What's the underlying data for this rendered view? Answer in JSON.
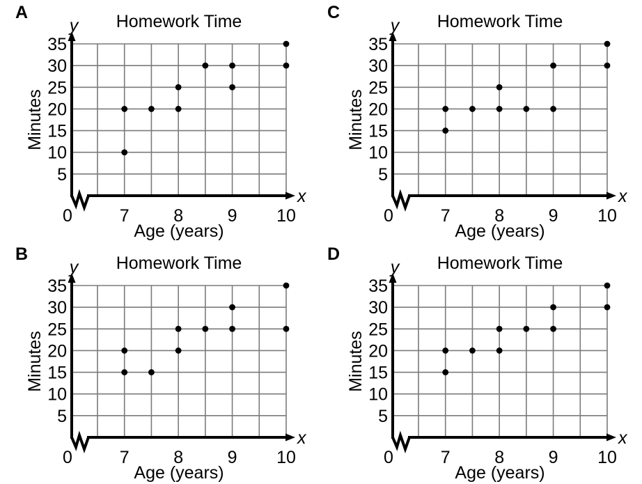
{
  "style": {
    "background": "#ffffff",
    "ink": "#000000",
    "gridline": "#7a7a7a"
  },
  "chart_data": [
    {
      "label": "A",
      "type": "scatter",
      "title": "Homework Time",
      "xlabel": "Age (years)",
      "ylabel": "Minutes",
      "x_axis_letter": "x",
      "y_axis_letter": "y",
      "origin_label": "0",
      "x_ticks": [
        7,
        8,
        9,
        10
      ],
      "y_ticks": [
        5,
        10,
        15,
        20,
        25,
        30,
        35
      ],
      "xlim": [
        6.5,
        10
      ],
      "ylim": [
        0,
        35
      ],
      "x_grid_step": 0.5,
      "y_grid_step": 5,
      "x_axis_break": true,
      "grid": true,
      "legend": "none",
      "points": [
        [
          7,
          10
        ],
        [
          7,
          20
        ],
        [
          7.5,
          20
        ],
        [
          8,
          20
        ],
        [
          8,
          25
        ],
        [
          8.5,
          30
        ],
        [
          9,
          25
        ],
        [
          9,
          30
        ],
        [
          10,
          30
        ],
        [
          10,
          35
        ]
      ]
    },
    {
      "label": "C",
      "type": "scatter",
      "title": "Homework Time",
      "xlabel": "Age (years)",
      "ylabel": "Minutes",
      "x_axis_letter": "x",
      "y_axis_letter": "y",
      "origin_label": "0",
      "x_ticks": [
        7,
        8,
        9,
        10
      ],
      "y_ticks": [
        5,
        10,
        15,
        20,
        25,
        30,
        35
      ],
      "xlim": [
        6.5,
        10
      ],
      "ylim": [
        0,
        35
      ],
      "x_grid_step": 0.5,
      "y_grid_step": 5,
      "x_axis_break": true,
      "grid": true,
      "legend": "none",
      "points": [
        [
          7,
          15
        ],
        [
          7,
          20
        ],
        [
          7.5,
          20
        ],
        [
          8,
          20
        ],
        [
          8,
          25
        ],
        [
          8.5,
          20
        ],
        [
          9,
          20
        ],
        [
          9,
          30
        ],
        [
          10,
          30
        ],
        [
          10,
          35
        ]
      ]
    },
    {
      "label": "B",
      "type": "scatter",
      "title": "Homework Time",
      "xlabel": "Age (years)",
      "ylabel": "Minutes",
      "x_axis_letter": "x",
      "y_axis_letter": "y",
      "origin_label": "0",
      "x_ticks": [
        7,
        8,
        9,
        10
      ],
      "y_ticks": [
        5,
        10,
        15,
        20,
        25,
        30,
        35
      ],
      "xlim": [
        6.5,
        10
      ],
      "ylim": [
        0,
        35
      ],
      "x_grid_step": 0.5,
      "y_grid_step": 5,
      "x_axis_break": true,
      "grid": true,
      "legend": "none",
      "points": [
        [
          7,
          15
        ],
        [
          7,
          20
        ],
        [
          7.5,
          15
        ],
        [
          8,
          20
        ],
        [
          8,
          25
        ],
        [
          8.5,
          25
        ],
        [
          9,
          25
        ],
        [
          9,
          30
        ],
        [
          10,
          25
        ],
        [
          10,
          35
        ]
      ]
    },
    {
      "label": "D",
      "type": "scatter",
      "title": "Homework Time",
      "xlabel": "Age (years)",
      "ylabel": "Minutes",
      "x_axis_letter": "x",
      "y_axis_letter": "y",
      "origin_label": "0",
      "x_ticks": [
        7,
        8,
        9,
        10
      ],
      "y_ticks": [
        5,
        10,
        15,
        20,
        25,
        30,
        35
      ],
      "xlim": [
        6.5,
        10
      ],
      "ylim": [
        0,
        35
      ],
      "x_grid_step": 0.5,
      "y_grid_step": 5,
      "x_axis_break": true,
      "grid": true,
      "legend": "none",
      "points": [
        [
          7,
          15
        ],
        [
          7,
          20
        ],
        [
          7.5,
          20
        ],
        [
          8,
          20
        ],
        [
          8,
          25
        ],
        [
          8.5,
          25
        ],
        [
          9,
          25
        ],
        [
          9,
          30
        ],
        [
          10,
          30
        ],
        [
          10,
          35
        ]
      ]
    }
  ]
}
